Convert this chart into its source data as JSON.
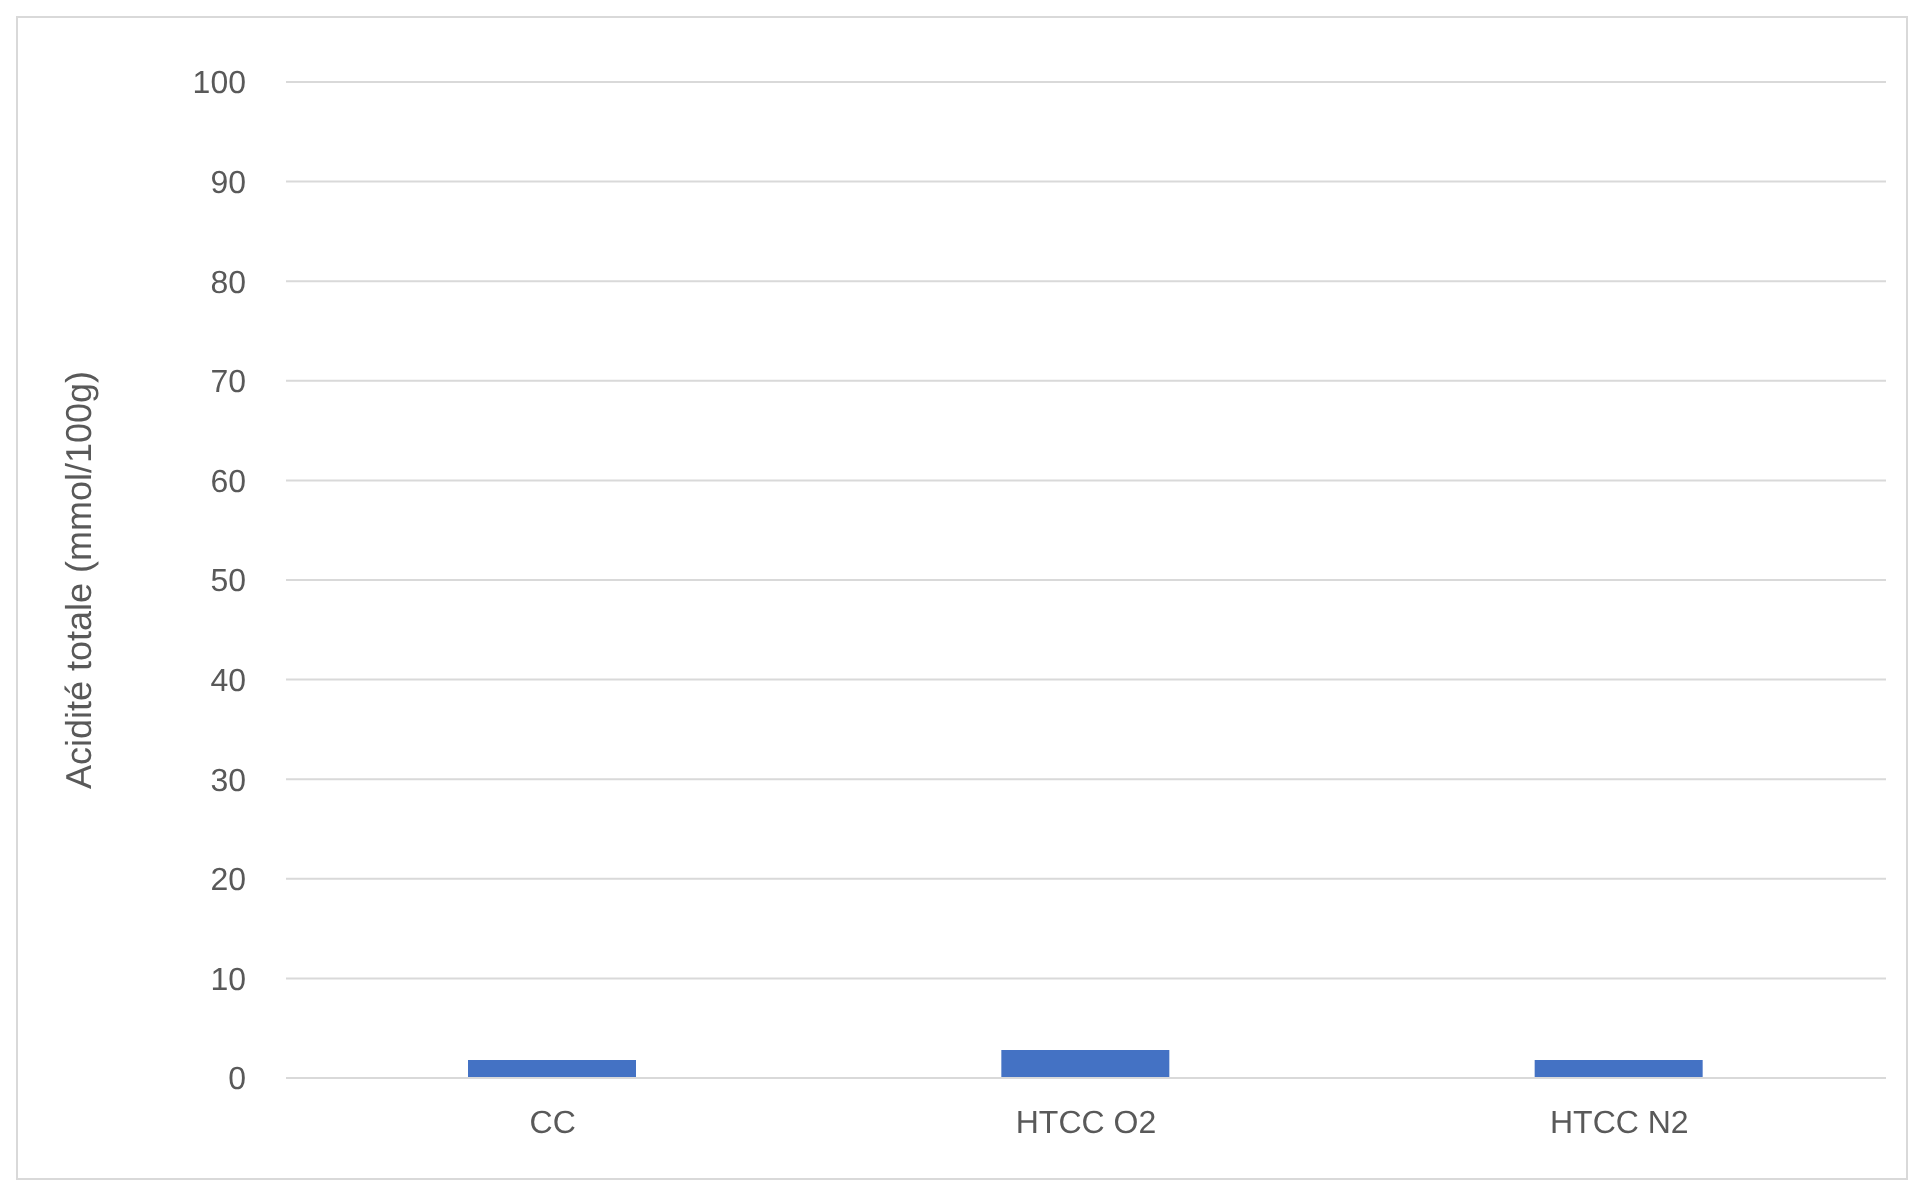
{
  "chart_data": {
    "type": "bar",
    "ylabel": "Acidité totale (mmol/100g)",
    "categories": [
      "CC",
      "HTCC O2",
      "HTCC N2"
    ],
    "values": [
      1.8,
      2.8,
      1.8
    ],
    "color": "#4472c4",
    "ylim": [
      0,
      100
    ],
    "yticks": [
      0,
      10,
      20,
      30,
      40,
      50,
      60,
      70,
      80,
      90,
      100
    ],
    "grid": "y"
  }
}
